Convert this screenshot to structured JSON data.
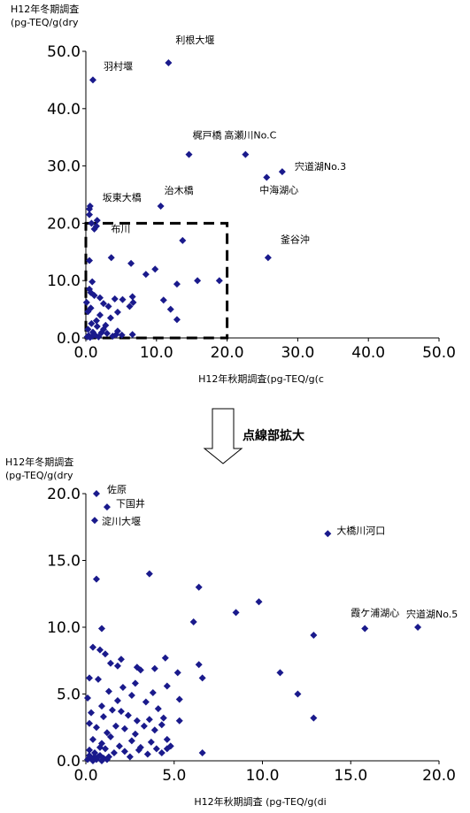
{
  "chart_data": [
    {
      "type": "scatter",
      "ylabel_lines": [
        "H12年冬期調査",
        "(pg-TEQ/g(dry"
      ],
      "xlabel": "H12年秋期調査(pg-TEQ/g(c",
      "xlim": [
        0,
        50
      ],
      "ylim": [
        0,
        50
      ],
      "x_ticks": [
        "0.0",
        "10.0",
        "20.0",
        "30.0",
        "40.0",
        "50.0"
      ],
      "y_ticks": [
        "0.0",
        "10.0",
        "20.0",
        "30.0",
        "40.0",
        "50.0"
      ],
      "color": "#1a1a8c",
      "grid": false,
      "highlight_box": {
        "x": [
          0,
          20
        ],
        "y": [
          0,
          20
        ],
        "style": "dashed"
      },
      "labeled_points": [
        {
          "x": 11.7,
          "y": 48.0,
          "label": "利根大堰"
        },
        {
          "x": 1.0,
          "y": 45.0,
          "label": "羽村堰"
        },
        {
          "x": 14.6,
          "y": 32.0,
          "label": "梶戸橋"
        },
        {
          "x": 22.6,
          "y": 32.0,
          "label": "高瀬川No.C"
        },
        {
          "x": 27.8,
          "y": 29.0,
          "label": "宍道湖No.3"
        },
        {
          "x": 25.6,
          "y": 28.0,
          "label": "中海湖心"
        },
        {
          "x": 10.6,
          "y": 23.0,
          "label": "治木橋"
        },
        {
          "x": 0.6,
          "y": 23.0,
          "label": "坂東大橋"
        },
        {
          "x": 0.8,
          "y": 20.0,
          "label": "布川"
        },
        {
          "x": 25.8,
          "y": 14.0,
          "label": "釜谷沖"
        }
      ],
      "points": [
        [
          0.5,
          22.5
        ],
        [
          0.5,
          21.5
        ],
        [
          1.2,
          19.0
        ],
        [
          1.6,
          20.5
        ],
        [
          1.5,
          19.5
        ],
        [
          13.7,
          17.0
        ],
        [
          3.6,
          14.0
        ],
        [
          0.5,
          13.5
        ],
        [
          6.4,
          13.0
        ],
        [
          9.8,
          12.0
        ],
        [
          8.5,
          11.1
        ],
        [
          18.9,
          10.0
        ],
        [
          15.8,
          10.0
        ],
        [
          12.9,
          9.4
        ],
        [
          0.9,
          9.8
        ],
        [
          5.2,
          6.7
        ],
        [
          11.0,
          6.6
        ],
        [
          12.0,
          5.0
        ],
        [
          12.9,
          3.2
        ],
        [
          0.5,
          8.5
        ],
        [
          0.7,
          7.9
        ],
        [
          1.2,
          7.4
        ],
        [
          2.0,
          7.0
        ],
        [
          2.5,
          6.0
        ],
        [
          3.2,
          5.5
        ],
        [
          4.1,
          6.8
        ],
        [
          4.5,
          4.5
        ],
        [
          6.2,
          5.5
        ],
        [
          6.6,
          7.2
        ],
        [
          6.7,
          6.2
        ],
        [
          3.5,
          3.5
        ],
        [
          2.0,
          4.0
        ],
        [
          1.5,
          3.0
        ],
        [
          0.8,
          2.5
        ],
        [
          0.3,
          1.5
        ],
        [
          1.0,
          1.0
        ],
        [
          2.5,
          1.5
        ],
        [
          3.0,
          0.8
        ],
        [
          4.5,
          1.2
        ],
        [
          5.1,
          0.5
        ],
        [
          6.6,
          0.6
        ],
        [
          0.2,
          0.2
        ],
        [
          0.4,
          0.4
        ],
        [
          0.6,
          0.1
        ],
        [
          0.9,
          0.3
        ],
        [
          1.3,
          0.5
        ],
        [
          1.8,
          0.2
        ],
        [
          2.2,
          0.9
        ],
        [
          3.8,
          0.3
        ],
        [
          4.3,
          0.6
        ],
        [
          0.3,
          4.6
        ],
        [
          0.1,
          6.2
        ],
        [
          0.7,
          5.2
        ],
        [
          2.8,
          2.2
        ],
        [
          1.6,
          2.0
        ]
      ]
    },
    {
      "type": "scatter",
      "ylabel_lines": [
        "H12年冬期調査",
        "(pg-TEQ/g(dry"
      ],
      "xlabel": "H12年秋期調査 (pg-TEQ/g(di",
      "xlim": [
        0,
        20
      ],
      "ylim": [
        0,
        20
      ],
      "x_ticks": [
        "0.0",
        "5.0",
        "10.0",
        "15.0",
        "20.0"
      ],
      "y_ticks": [
        "0.0",
        "5.0",
        "10.0",
        "15.0",
        "20.0"
      ],
      "color": "#1a1a8c",
      "grid": false,
      "labeled_points": [
        {
          "x": 0.6,
          "y": 20.0,
          "label": "佐原"
        },
        {
          "x": 1.2,
          "y": 19.0,
          "label": "下国井"
        },
        {
          "x": 0.5,
          "y": 18.0,
          "label": "淀川大堰"
        },
        {
          "x": 13.7,
          "y": 17.0,
          "label": "大橋川河口"
        },
        {
          "x": 15.8,
          "y": 9.9,
          "label": "霞ケ浦湖心"
        },
        {
          "x": 18.8,
          "y": 10.0,
          "label": "宍道湖No.5"
        }
      ],
      "points": [
        [
          0.6,
          13.6
        ],
        [
          3.6,
          14.0
        ],
        [
          6.4,
          13.0
        ],
        [
          9.8,
          11.9
        ],
        [
          8.5,
          11.1
        ],
        [
          6.1,
          10.4
        ],
        [
          12.9,
          9.4
        ],
        [
          0.9,
          9.9
        ],
        [
          0.4,
          8.5
        ],
        [
          0.8,
          8.3
        ],
        [
          1.1,
          8.0
        ],
        [
          1.4,
          7.3
        ],
        [
          1.8,
          7.1
        ],
        [
          2.0,
          7.6
        ],
        [
          2.9,
          7.0
        ],
        [
          3.1,
          6.8
        ],
        [
          3.9,
          6.9
        ],
        [
          4.5,
          7.7
        ],
        [
          6.4,
          7.2
        ],
        [
          5.2,
          6.6
        ],
        [
          6.6,
          6.2
        ],
        [
          11.0,
          6.6
        ],
        [
          12.0,
          5.0
        ],
        [
          12.9,
          3.2
        ],
        [
          0.2,
          6.2
        ],
        [
          0.7,
          6.1
        ],
        [
          1.3,
          5.2
        ],
        [
          2.1,
          5.5
        ],
        [
          2.8,
          5.8
        ],
        [
          3.8,
          5.1
        ],
        [
          4.6,
          5.6
        ],
        [
          0.1,
          4.7
        ],
        [
          0.9,
          4.1
        ],
        [
          1.8,
          4.5
        ],
        [
          2.6,
          4.9
        ],
        [
          3.4,
          4.4
        ],
        [
          4.1,
          3.9
        ],
        [
          5.3,
          4.6
        ],
        [
          0.3,
          3.6
        ],
        [
          1.0,
          3.3
        ],
        [
          1.5,
          3.8
        ],
        [
          2.0,
          3.7
        ],
        [
          2.4,
          3.4
        ],
        [
          2.9,
          3.0
        ],
        [
          3.6,
          3.1
        ],
        [
          4.4,
          3.2
        ],
        [
          5.3,
          3.0
        ],
        [
          0.2,
          2.8
        ],
        [
          0.6,
          2.5
        ],
        [
          1.2,
          2.1
        ],
        [
          1.7,
          2.6
        ],
        [
          2.2,
          2.4
        ],
        [
          2.8,
          2.0
        ],
        [
          3.3,
          2.6
        ],
        [
          3.9,
          2.3
        ],
        [
          4.3,
          2.7
        ],
        [
          0.4,
          1.6
        ],
        [
          0.9,
          1.3
        ],
        [
          1.4,
          1.8
        ],
        [
          1.9,
          1.1
        ],
        [
          2.6,
          1.5
        ],
        [
          3.1,
          1.0
        ],
        [
          3.7,
          1.4
        ],
        [
          4.6,
          1.6
        ],
        [
          0.2,
          0.8
        ],
        [
          0.5,
          0.6
        ],
        [
          0.8,
          0.4
        ],
        [
          1.1,
          0.9
        ],
        [
          1.3,
          0.3
        ],
        [
          1.6,
          0.6
        ],
        [
          2.2,
          0.7
        ],
        [
          2.5,
          0.3
        ],
        [
          3.0,
          0.8
        ],
        [
          3.5,
          0.5
        ],
        [
          4.0,
          0.9
        ],
        [
          4.3,
          0.6
        ],
        [
          4.6,
          0.9
        ],
        [
          4.8,
          1.1
        ],
        [
          6.6,
          0.6
        ],
        [
          0.1,
          0.1
        ],
        [
          0.3,
          0.2
        ],
        [
          0.4,
          0.0
        ],
        [
          0.6,
          0.1
        ],
        [
          0.7,
          0.3
        ],
        [
          0.9,
          0.0
        ],
        [
          1.0,
          0.2
        ],
        [
          0.2,
          0.4
        ],
        [
          0.5,
          0.3
        ],
        [
          1.2,
          0.1
        ],
        [
          0.8,
          1.0
        ]
      ]
    }
  ],
  "arrow_label": "点線部拡大"
}
